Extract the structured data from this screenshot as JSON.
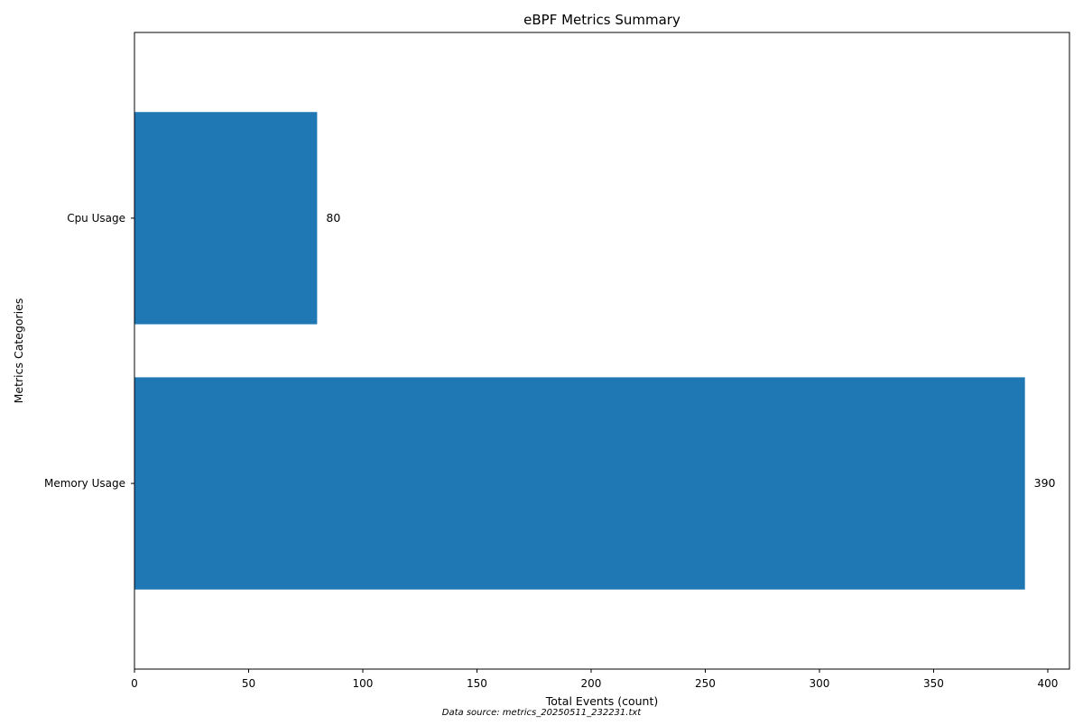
{
  "chart_data": {
    "type": "bar",
    "orientation": "horizontal",
    "title": "eBPF Metrics Summary",
    "xlabel": "Total Events (count)",
    "ylabel": "Metrics Categories",
    "categories": [
      "Memory Usage",
      "Cpu Usage"
    ],
    "values": [
      390,
      80
    ],
    "value_labels": [
      "390",
      "80"
    ],
    "xlim": [
      0,
      409.5
    ],
    "xticks": [
      0,
      50,
      100,
      150,
      200,
      250,
      300,
      350,
      400
    ],
    "grid": false,
    "legend": "none",
    "bar_color": "#1f77b4",
    "footnote": "Data source: metrics_20250511_232231.txt"
  }
}
